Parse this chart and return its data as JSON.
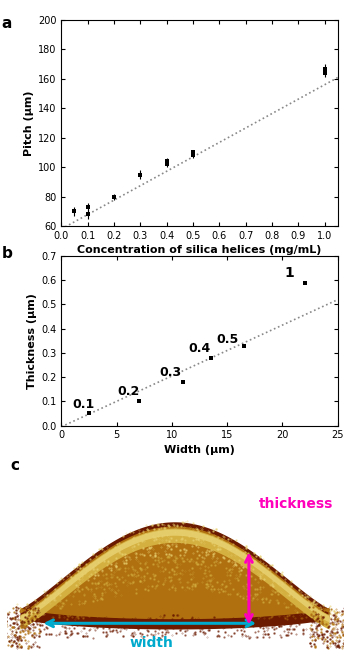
{
  "panel_a": {
    "x": [
      0.05,
      0.1,
      0.1,
      0.2,
      0.3,
      0.4,
      0.4,
      0.5,
      0.5,
      1.0,
      1.0
    ],
    "y": [
      70,
      68,
      73,
      80,
      95,
      104,
      102,
      110,
      108,
      167,
      164
    ],
    "yerr": [
      3,
      3,
      3,
      2,
      3,
      2,
      2,
      2,
      2,
      3,
      3
    ],
    "xlabel": "Concentration of silica helices (mg/mL)",
    "ylabel": "Pitch (μm)",
    "xlim": [
      0.0,
      1.05
    ],
    "ylim": [
      60,
      200
    ],
    "yticks": [
      60,
      80,
      100,
      120,
      140,
      160,
      180,
      200
    ],
    "xticks": [
      0.0,
      0.1,
      0.2,
      0.3,
      0.4,
      0.5,
      0.6,
      0.7,
      0.8,
      0.9,
      1.0
    ],
    "trendline_slope": 98,
    "trendline_intercept": 58
  },
  "panel_b": {
    "x": [
      2.5,
      7.0,
      11.0,
      13.5,
      16.5,
      22.0
    ],
    "y": [
      0.05,
      0.1,
      0.18,
      0.28,
      0.33,
      0.59
    ],
    "labels": [
      "0.1",
      "0.2",
      "0.3",
      "0.4",
      "0.5",
      "1"
    ],
    "xlabel": "Width (μm)",
    "ylabel": "Thickness (μm)",
    "xlim": [
      0,
      25
    ],
    "ylim": [
      0.0,
      0.7
    ],
    "yticks": [
      0.0,
      0.1,
      0.2,
      0.3,
      0.4,
      0.5,
      0.6,
      0.7
    ],
    "xticks": [
      0,
      5,
      10,
      15,
      20,
      25
    ],
    "trendline_slope": 0.021,
    "trendline_intercept": -0.005
  },
  "background_color": "#ffffff",
  "marker_color": "#000000",
  "trendline_color": "#888888",
  "arrow_width_color": "#00AACC",
  "arrow_thickness_color": "#FF00BB",
  "panel_c": {
    "arch_color_dark": "#6b1a00",
    "arch_color_mid": "#b07010",
    "arch_color_light": "#d4b040",
    "arch_color_top": "#e8d070"
  }
}
